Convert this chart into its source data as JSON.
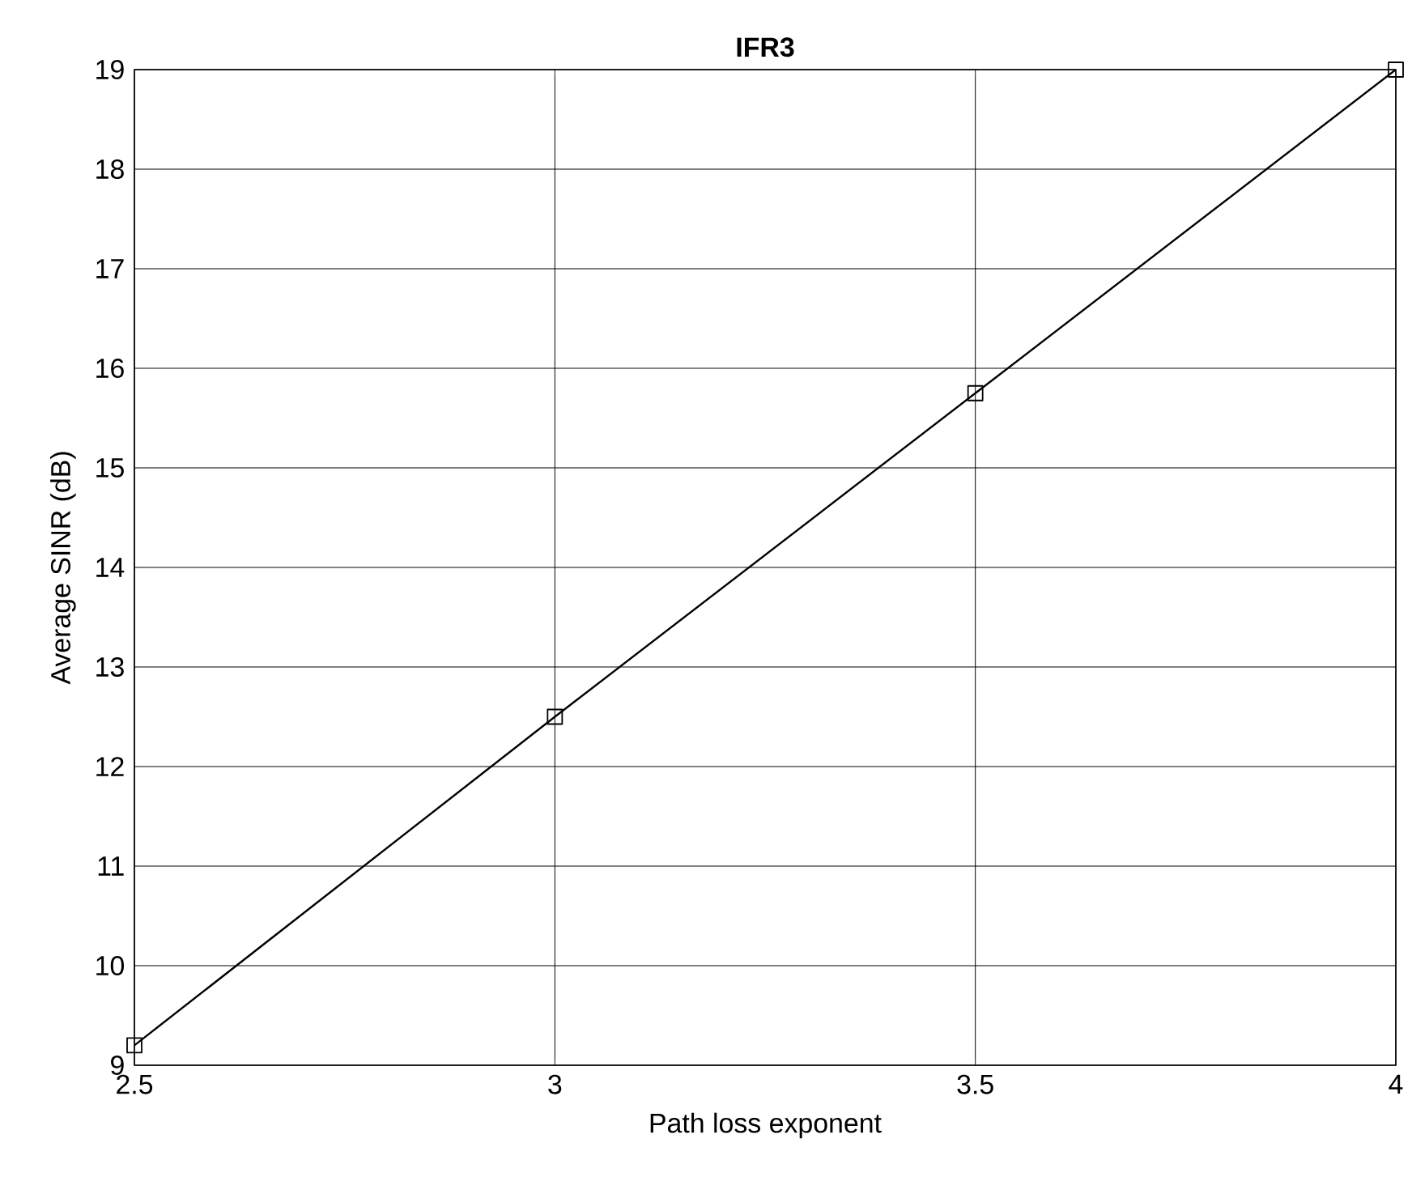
{
  "chart_data": {
    "type": "line",
    "title": "IFR3",
    "xlabel": "Path loss exponent",
    "ylabel": "Average SINR (dB)",
    "x": [
      2.5,
      3,
      3.5,
      4
    ],
    "series": [
      {
        "color": "#000000",
        "values": [
          9.2,
          12.5,
          15.75,
          19
        ]
      }
    ],
    "xlim": [
      2.5,
      4
    ],
    "ylim": [
      9,
      19
    ],
    "xticks": [
      2.5,
      3,
      3.5,
      4
    ],
    "yticks": [
      9,
      10,
      11,
      12,
      13,
      14,
      15,
      16,
      17,
      18,
      19
    ],
    "grid": true,
    "marker": "square",
    "line_style": "solid"
  }
}
